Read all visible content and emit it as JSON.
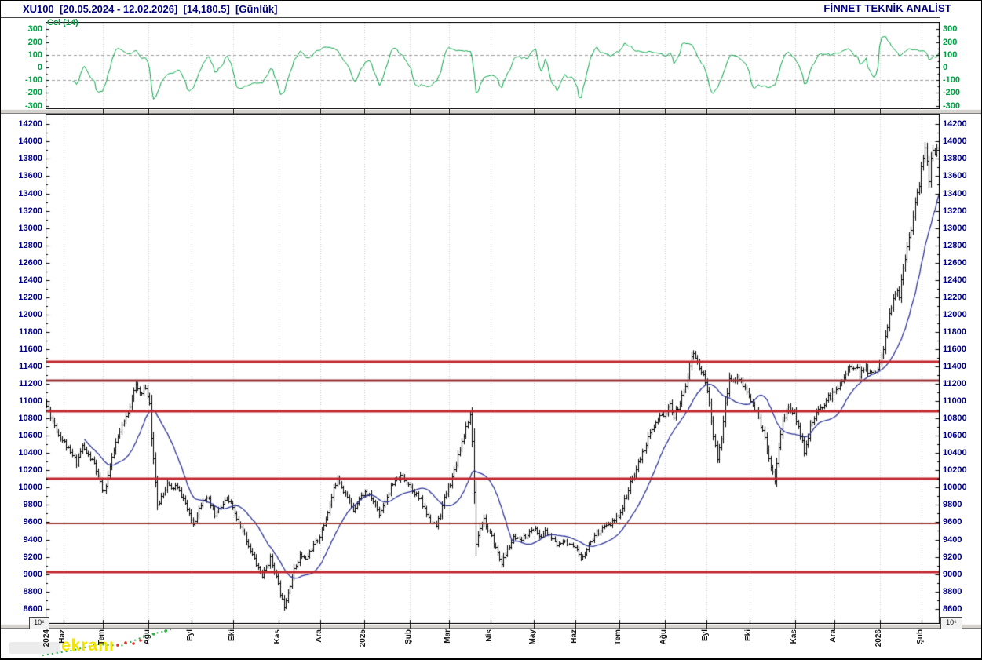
{
  "header": {
    "title": "XU100  [20.05.2024 - 12.02.2026]  [14,180.5]  [Günlük]",
    "brand": "FİNNET TEKNİK ANALİST"
  },
  "watermark": {
    "text": "ekranı"
  },
  "chart_data": {
    "type": "candlestick",
    "symbol": "XU100",
    "date_range": "20.05.2024 - 12.02.2026",
    "last_value": 14180.5,
    "interval_label": "Günlük",
    "bars_total": 452,
    "volume_scale_label": "10⁶",
    "main_panel": {
      "ylim": [
        8600,
        14200
      ],
      "tick_step": 200,
      "minor_step": 100,
      "bar_color": "#000000",
      "moving_average": {
        "period": 20,
        "color": "#2f3699"
      },
      "horizontal_lines": [
        {
          "value": 11450,
          "color": "#c1272d",
          "width": 3
        },
        {
          "value": 11240,
          "color": "#9a3439",
          "width": 3
        },
        {
          "value": 10880,
          "color": "#c1272d",
          "width": 3
        },
        {
          "value": 10105,
          "color": "#c1272d",
          "width": 3
        },
        {
          "value": 9585,
          "color": "#a23a35",
          "width": 2
        },
        {
          "value": 9025,
          "color": "#c1272d",
          "width": 3
        }
      ],
      "price_keyframes": [
        [
          0,
          10950
        ],
        [
          3,
          10780
        ],
        [
          6,
          10620
        ],
        [
          9,
          10520
        ],
        [
          12,
          10400
        ],
        [
          15,
          10300
        ],
        [
          18,
          10480
        ],
        [
          21,
          10370
        ],
        [
          24,
          10280
        ],
        [
          26,
          10120
        ],
        [
          28,
          9980
        ],
        [
          29,
          9940
        ],
        [
          31,
          10150
        ],
        [
          33,
          10330
        ],
        [
          35,
          10520
        ],
        [
          38,
          10700
        ],
        [
          41,
          10880
        ],
        [
          43,
          11050
        ],
        [
          45,
          11180
        ],
        [
          47,
          11100
        ],
        [
          49,
          11150
        ],
        [
          51,
          11080
        ],
        [
          52,
          10980
        ],
        [
          53,
          10600
        ],
        [
          55,
          10080
        ],
        [
          56,
          9780
        ],
        [
          58,
          9900
        ],
        [
          61,
          10050
        ],
        [
          63,
          9980
        ],
        [
          65,
          10020
        ],
        [
          68,
          9920
        ],
        [
          70,
          9820
        ],
        [
          72,
          9680
        ],
        [
          74,
          9580
        ],
        [
          76,
          9700
        ],
        [
          79,
          9880
        ],
        [
          82,
          9850
        ],
        [
          85,
          9680
        ],
        [
          88,
          9780
        ],
        [
          91,
          9870
        ],
        [
          93,
          9800
        ],
        [
          95,
          9700
        ],
        [
          97,
          9580
        ],
        [
          100,
          9450
        ],
        [
          103,
          9280
        ],
        [
          106,
          9120
        ],
        [
          109,
          8980
        ],
        [
          111,
          9080
        ],
        [
          113,
          9180
        ],
        [
          115,
          9050
        ],
        [
          117,
          8870
        ],
        [
          119,
          8700
        ],
        [
          120,
          8640
        ],
        [
          122,
          8800
        ],
        [
          125,
          9050
        ],
        [
          128,
          9220
        ],
        [
          131,
          9170
        ],
        [
          134,
          9300
        ],
        [
          137,
          9400
        ],
        [
          139,
          9500
        ],
        [
          141,
          9650
        ],
        [
          143,
          9800
        ],
        [
          145,
          9980
        ],
        [
          147,
          10130
        ],
        [
          149,
          10020
        ],
        [
          152,
          9880
        ],
        [
          155,
          9750
        ],
        [
          158,
          9880
        ],
        [
          161,
          9950
        ],
        [
          164,
          9880
        ],
        [
          166,
          9800
        ],
        [
          168,
          9700
        ],
        [
          171,
          9850
        ],
        [
          174,
          10000
        ],
        [
          177,
          10100
        ],
        [
          180,
          10130
        ],
        [
          183,
          10050
        ],
        [
          186,
          9950
        ],
        [
          189,
          9850
        ],
        [
          192,
          9700
        ],
        [
          195,
          9590
        ],
        [
          197,
          9560
        ],
        [
          199,
          9700
        ],
        [
          201,
          9870
        ],
        [
          203,
          10000
        ],
        [
          205,
          10120
        ],
        [
          208,
          10380
        ],
        [
          211,
          10620
        ],
        [
          213,
          10780
        ],
        [
          214,
          10820
        ],
        [
          215,
          10550
        ],
        [
          217,
          9350
        ],
        [
          219,
          9550
        ],
        [
          221,
          9650
        ],
        [
          223,
          9500
        ],
        [
          225,
          9420
        ],
        [
          227,
          9300
        ],
        [
          230,
          9130
        ],
        [
          233,
          9280
        ],
        [
          236,
          9420
        ],
        [
          239,
          9380
        ],
        [
          242,
          9450
        ],
        [
          245,
          9500
        ],
        [
          247,
          9540
        ],
        [
          249,
          9420
        ],
        [
          252,
          9500
        ],
        [
          255,
          9420
        ],
        [
          258,
          9330
        ],
        [
          261,
          9400
        ],
        [
          264,
          9350
        ],
        [
          266,
          9300
        ],
        [
          268,
          9270
        ],
        [
          270,
          9160
        ],
        [
          272,
          9260
        ],
        [
          275,
          9380
        ],
        [
          278,
          9480
        ],
        [
          281,
          9540
        ],
        [
          284,
          9560
        ],
        [
          287,
          9620
        ],
        [
          290,
          9720
        ],
        [
          292,
          9850
        ],
        [
          295,
          10050
        ],
        [
          298,
          10220
        ],
        [
          301,
          10400
        ],
        [
          304,
          10570
        ],
        [
          307,
          10700
        ],
        [
          310,
          10820
        ],
        [
          313,
          10870
        ],
        [
          315,
          10950
        ],
        [
          317,
          10830
        ],
        [
          319,
          10920
        ],
        [
          321,
          11050
        ],
        [
          323,
          11200
        ],
        [
          325,
          11420
        ],
        [
          327,
          11560
        ],
        [
          329,
          11450
        ],
        [
          331,
          11340
        ],
        [
          333,
          11220
        ],
        [
          335,
          10980
        ],
        [
          337,
          10620
        ],
        [
          339,
          10320
        ],
        [
          341,
          10560
        ],
        [
          343,
          10950
        ],
        [
          345,
          11300
        ],
        [
          347,
          11220
        ],
        [
          349,
          11300
        ],
        [
          352,
          11180
        ],
        [
          355,
          11060
        ],
        [
          357,
          10960
        ],
        [
          360,
          10820
        ],
        [
          363,
          10560
        ],
        [
          366,
          10260
        ],
        [
          368,
          10090
        ],
        [
          370,
          10480
        ],
        [
          372,
          10780
        ],
        [
          375,
          10930
        ],
        [
          378,
          10860
        ],
        [
          381,
          10620
        ],
        [
          383,
          10430
        ],
        [
          386,
          10700
        ],
        [
          389,
          10850
        ],
        [
          392,
          10950
        ],
        [
          395,
          11040
        ],
        [
          398,
          11100
        ],
        [
          400,
          11180
        ],
        [
          403,
          11280
        ],
        [
          406,
          11380
        ],
        [
          409,
          11420
        ],
        [
          411,
          11310
        ],
        [
          414,
          11380
        ],
        [
          417,
          11310
        ],
        [
          420,
          11400
        ],
        [
          422,
          11500
        ],
        [
          424,
          11750
        ],
        [
          426,
          11980
        ],
        [
          428,
          12180
        ],
        [
          430,
          12280
        ],
        [
          431,
          12220
        ],
        [
          433,
          12550
        ],
        [
          435,
          12820
        ],
        [
          437,
          13020
        ],
        [
          439,
          13260
        ],
        [
          441,
          13520
        ],
        [
          443,
          13830
        ],
        [
          444,
          13950
        ],
        [
          445,
          13800
        ],
        [
          446,
          13520
        ],
        [
          447,
          13780
        ],
        [
          448,
          13900
        ],
        [
          449,
          13840
        ],
        [
          450,
          13960
        ],
        [
          451,
          14180.5
        ]
      ]
    },
    "cci_panel": {
      "label": "Cci (14)",
      "period": 14,
      "color": "#00a144",
      "ticks": [
        300,
        200,
        100,
        0,
        -100,
        -200,
        -300
      ],
      "dashed_levels": [
        100,
        -100
      ],
      "ylim": [
        -335,
        335
      ]
    },
    "x_axis": {
      "labels": [
        {
          "text": "2024",
          "bar": 1
        },
        {
          "text": "Haz",
          "bar": 9
        },
        {
          "text": "Tem",
          "bar": 29
        },
        {
          "text": "Ağu",
          "bar": 52
        },
        {
          "text": "Eyl",
          "bar": 74
        },
        {
          "text": "Eki",
          "bar": 95
        },
        {
          "text": "Kas",
          "bar": 118
        },
        {
          "text": "Ara",
          "bar": 139
        },
        {
          "text": "2025",
          "bar": 161
        },
        {
          "text": "Şub",
          "bar": 184
        },
        {
          "text": "Mar",
          "bar": 204
        },
        {
          "text": "Nis",
          "bar": 225
        },
        {
          "text": "May",
          "bar": 247
        },
        {
          "text": "Haz",
          "bar": 268
        },
        {
          "text": "Tem",
          "bar": 290
        },
        {
          "text": "Ağu",
          "bar": 313
        },
        {
          "text": "Eyl",
          "bar": 334
        },
        {
          "text": "Eki",
          "bar": 356
        },
        {
          "text": "Kas",
          "bar": 379
        },
        {
          "text": "Ara",
          "bar": 399
        },
        {
          "text": "2026",
          "bar": 422
        },
        {
          "text": "Şub",
          "bar": 443
        }
      ]
    }
  }
}
